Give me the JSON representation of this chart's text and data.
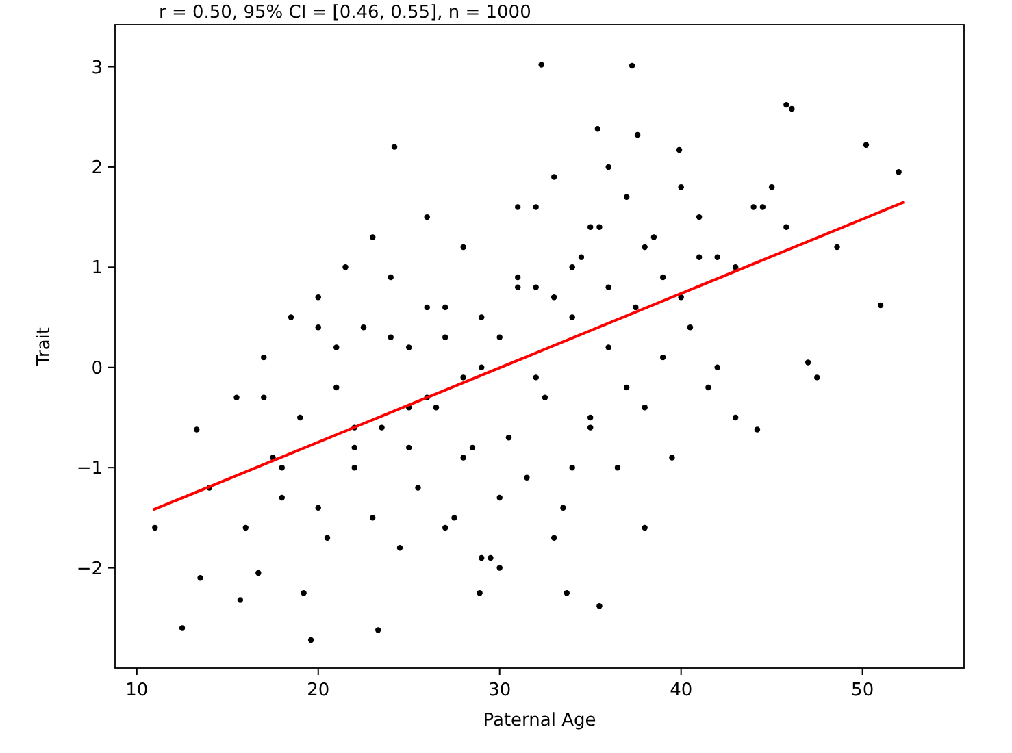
{
  "chart_data": {
    "type": "scatter",
    "title": "r = 0.50, 95% CI = [0.46, 0.55], n = 1000",
    "xlabel": "Paternal Age",
    "ylabel": "Trait",
    "xlim": [
      8.8,
      55.6
    ],
    "ylim": [
      -3.0,
      3.42
    ],
    "xticks": [
      10,
      20,
      30,
      40,
      50
    ],
    "yticks": [
      -2,
      -1,
      0,
      1,
      2,
      3
    ],
    "grid": false,
    "marker": "circle",
    "series": [
      {
        "color": "#000000",
        "x": [
          32.3,
          37.3,
          24.2,
          45.8,
          46.1,
          50.2,
          52,
          48.6,
          51,
          47,
          47.5,
          44.2,
          19.6,
          12.5,
          13.5,
          11,
          15.7,
          23.3,
          19.2,
          35.5,
          33.7,
          28.9,
          13.3,
          16.7,
          35.4,
          37.6,
          39.9,
          40,
          42,
          44,
          45,
          45.8,
          14,
          15.5,
          16,
          17,
          17.5,
          18,
          18.5,
          19,
          20,
          20.5,
          21,
          21.5,
          22,
          22.5,
          23,
          23.5,
          24,
          24.5,
          25,
          25.5,
          26,
          26.5,
          27,
          27.5,
          28,
          28.5,
          29,
          29.5,
          30,
          30.5,
          31,
          31.5,
          32,
          32.5,
          33,
          33.5,
          34,
          34.5,
          35,
          35.5,
          36,
          36.5,
          37,
          37.5,
          38,
          38.5,
          39,
          39.5,
          40.5,
          41,
          41.5,
          43,
          18,
          20,
          21,
          22,
          23,
          24,
          25,
          26,
          27,
          28,
          29,
          30,
          31,
          32,
          33,
          34,
          35,
          36,
          37,
          38,
          39,
          40,
          41,
          42,
          25,
          27,
          29,
          31,
          33,
          35,
          30,
          28,
          26,
          32,
          34,
          36,
          22,
          20,
          17,
          38,
          43,
          44.5
        ],
        "values": [
          3.02,
          3.01,
          2.2,
          2.62,
          2.58,
          2.22,
          1.95,
          1.2,
          0.62,
          0.05,
          -0.1,
          -0.62,
          -2.72,
          -2.6,
          -2.1,
          -1.6,
          -2.32,
          -2.62,
          -2.25,
          -2.38,
          -2.25,
          -2.25,
          -0.62,
          -2.05,
          2.38,
          2.32,
          2.17,
          1.8,
          1.1,
          1.6,
          1.8,
          1.4,
          -1.2,
          -0.3,
          -1.6,
          0.1,
          -0.9,
          -1.3,
          0.5,
          -0.5,
          0.7,
          -1.7,
          -0.2,
          1.0,
          -1.0,
          0.4,
          1.3,
          -0.6,
          0.9,
          -1.8,
          0.2,
          -1.2,
          1.5,
          -0.4,
          0.6,
          -1.5,
          1.2,
          -0.8,
          0.0,
          -1.9,
          0.3,
          -0.7,
          1.6,
          -1.1,
          0.8,
          -0.3,
          1.9,
          -1.4,
          0.5,
          1.1,
          -0.5,
          1.4,
          0.2,
          -1.0,
          1.7,
          0.6,
          -0.4,
          1.3,
          0.9,
          -0.9,
          0.4,
          1.5,
          -0.2,
          1.0,
          -1.0,
          -1.4,
          0.2,
          -0.6,
          -1.5,
          0.3,
          -0.4,
          0.6,
          -1.6,
          -0.9,
          0.5,
          -1.3,
          0.9,
          -0.1,
          0.7,
          1.0,
          -0.6,
          0.8,
          -0.2,
          1.2,
          0.1,
          0.7,
          1.1,
          0.0,
          -0.8,
          0.3,
          -1.9,
          0.8,
          -1.7,
          1.4,
          -2.0,
          -0.1,
          -0.3,
          1.6,
          -1.0,
          2.0,
          -0.8,
          0.4,
          -0.3,
          -1.6,
          -0.5,
          1.6
        ]
      },
      {
        "type": "line",
        "marker": "none",
        "color": "#ff0000",
        "x": [
          10.9,
          52.3
        ],
        "values": [
          -1.42,
          1.65
        ]
      }
    ]
  }
}
